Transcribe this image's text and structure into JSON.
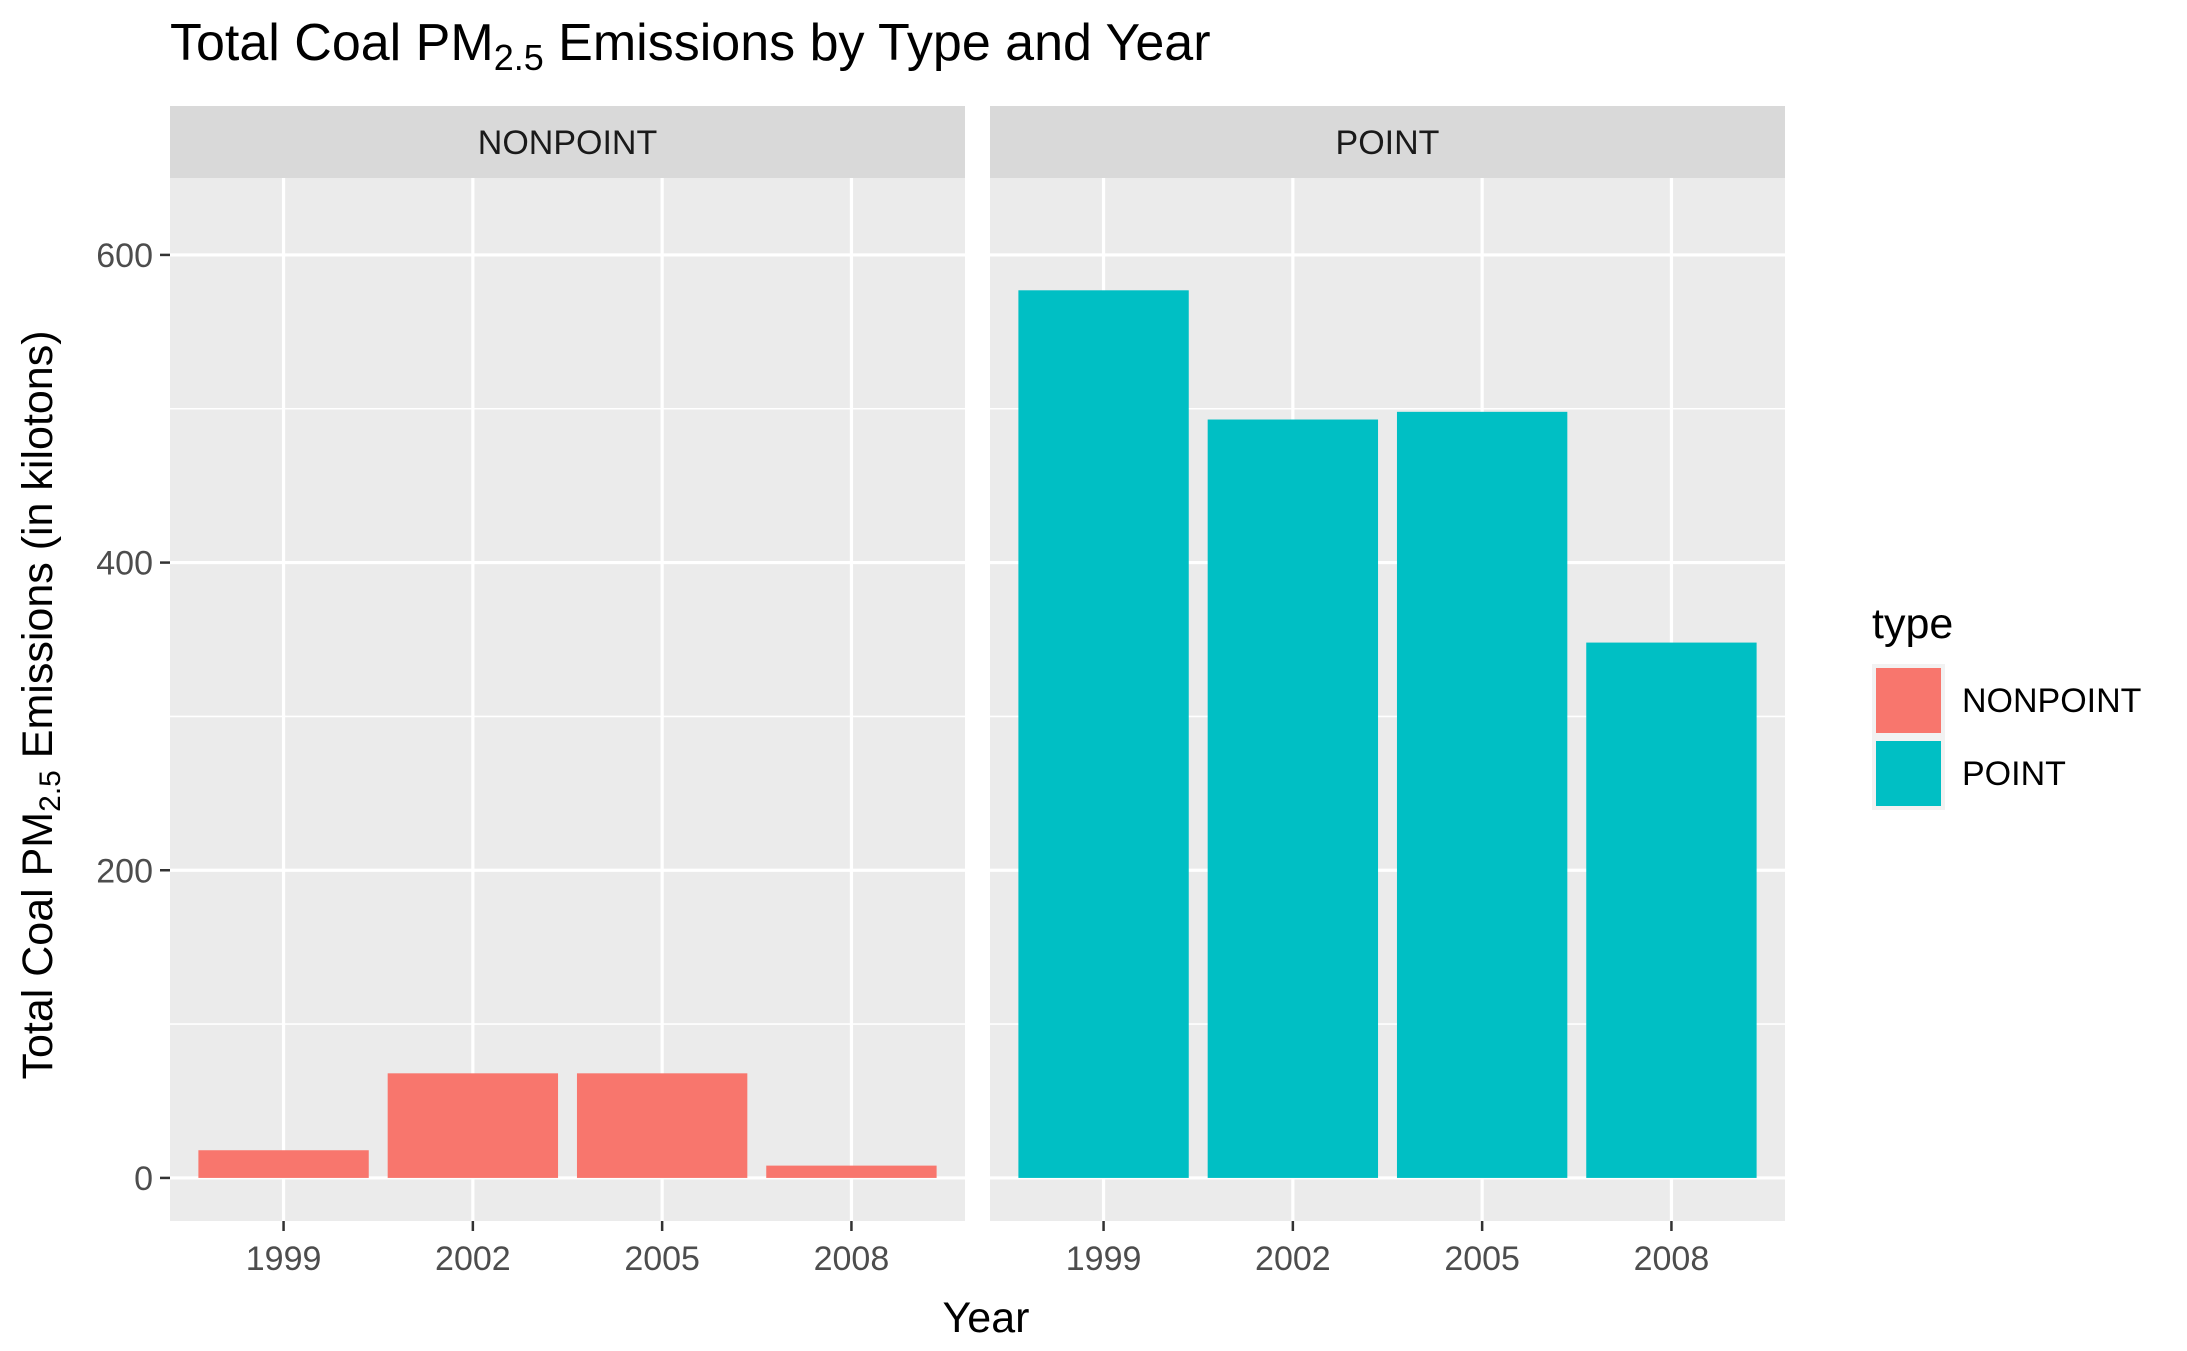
{
  "chart_data": {
    "type": "bar",
    "title": {
      "prefix": "Total Coal  PM",
      "subscript": "2.5",
      "suffix": " Emissions by Type and Year"
    },
    "xlabel": "Year",
    "ylabel": {
      "prefix": "Total Coal  PM",
      "subscript": "2.5",
      "suffix": " Emissions (in kilotons)"
    },
    "categories": [
      "1999",
      "2002",
      "2005",
      "2008"
    ],
    "ylim": [
      -28,
      650
    ],
    "yticks": [
      0,
      200,
      400,
      600
    ],
    "grid": true,
    "legend": {
      "title": "type",
      "position": "right",
      "entries": [
        {
          "label": "NONPOINT",
          "color": "#F8766D"
        },
        {
          "label": "POINT",
          "color": "#00BFC4"
        }
      ]
    },
    "panels": [
      {
        "strip": "NONPOINT",
        "color": "#F8766D",
        "values": [
          18,
          68,
          68,
          8
        ]
      },
      {
        "strip": "POINT",
        "color": "#00BFC4",
        "values": [
          577,
          493,
          498,
          348
        ]
      }
    ]
  }
}
